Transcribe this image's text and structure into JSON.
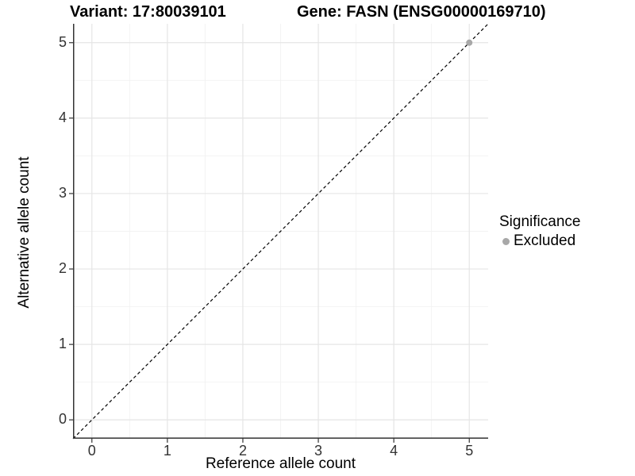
{
  "titles": {
    "variant": "Variant: 17:80039101",
    "gene": "Gene: FASN (ENSG00000169710)"
  },
  "axes": {
    "x": {
      "label": "Reference allele count"
    },
    "y": {
      "label": "Alternative allele count"
    }
  },
  "legend": {
    "title": "Significance",
    "items": [
      {
        "label": "Excluded",
        "color": "#a8a8a8"
      }
    ]
  },
  "colors": {
    "background": "#ffffff",
    "grid_major": "#e5e5e5",
    "grid_minor": "#f2f2f2",
    "axis_line": "#333333",
    "tick_text": "#333333",
    "dashed_line": "#000000",
    "point_gray": "#a8a8a8"
  },
  "chart_data": {
    "type": "scatter",
    "title": "Variant: 17:80039101 / Gene: FASN (ENSG00000169710)",
    "xlabel": "Reference allele count",
    "ylabel": "Alternative allele count",
    "xlim": [
      -0.25,
      5.25
    ],
    "ylim": [
      -0.25,
      5.25
    ],
    "x_ticks": [
      0,
      1,
      2,
      3,
      4,
      5
    ],
    "y_ticks": [
      0,
      1,
      2,
      3,
      4,
      5
    ],
    "grid": "major+minor",
    "legend_position": "right",
    "series": [
      {
        "name": "Excluded",
        "color": "#a8a8a8",
        "points": [
          [
            5,
            5
          ]
        ]
      }
    ],
    "reference_line": {
      "style": "dashed",
      "equation": "y = x",
      "from": [
        -0.25,
        -0.25
      ],
      "to": [
        5.25,
        5.25
      ],
      "color": "#000000"
    }
  }
}
